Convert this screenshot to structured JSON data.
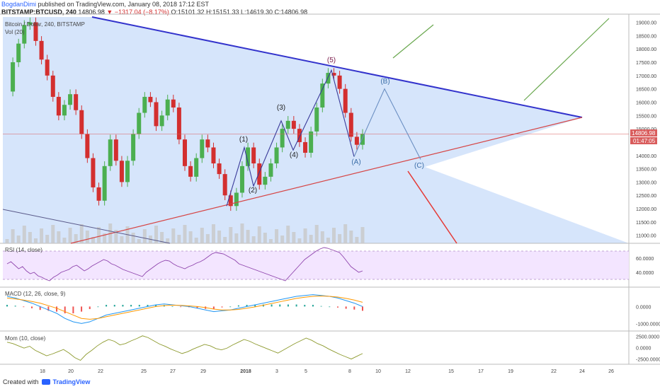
{
  "header": {
    "author": "BogdanDimi",
    "published_text": " published on TradingView.com, January 08, 2018 17:12 EST",
    "symbol": "BITSTAMP:BTCUSD, 240",
    "price": "14806.98",
    "change": "−1317.04 (−8.17%)",
    "ohlc": "O:15101.32 H:15151.33 L:14619.30 C:14806.98"
  },
  "legend": {
    "main": "Bitcoin / Dollar, 240, BITSTAMP",
    "volume": "Vol (20)"
  },
  "price_tags": {
    "price": "14806.98",
    "countdown": "01:47:05"
  },
  "footer": {
    "created_with": "Created with",
    "brand": "TradingView"
  },
  "colors": {
    "background": "#ffffff",
    "triangle_fill": "#cfe0fa",
    "upper_trendline": "#3333cc",
    "lower_trendline": "#d64545",
    "candle_up": "#4caf50",
    "candle_down": "#d32f2f",
    "rsi_line": "#8e44ad",
    "rsi_band": "#f3e5ff",
    "macd_line": "#2196f3",
    "signal_line": "#ff9800",
    "mom_line": "#8d9a2e",
    "current_price_line": "#d95c5c"
  },
  "chart_data": [
    {
      "type": "candlestick",
      "title": "Bitcoin / Dollar, 240, BITSTAMP",
      "ylim": [
        10700,
        19200
      ],
      "y_ticks": [
        "19000.00",
        "18500.00",
        "18000.00",
        "17500.00",
        "17000.00",
        "16500.00",
        "16000.00",
        "15500.00",
        "15000.00",
        "14500.00",
        "14000.00",
        "13500.00",
        "13000.00",
        "12500.00",
        "12000.00",
        "11500.00",
        "11000.00"
      ],
      "x_ticks": [
        "18",
        "20",
        "22",
        "25",
        "27",
        "29",
        "2018",
        "3",
        "5",
        "8",
        "10",
        "12",
        "15",
        "17",
        "19",
        "22",
        "24",
        "26"
      ],
      "close_path": [
        16400,
        17500,
        18200,
        18900,
        19000,
        18300,
        17600,
        17000,
        16200,
        15500,
        15900,
        16300,
        15700,
        14800,
        13900,
        12800,
        12300,
        13600,
        14600,
        13800,
        13000,
        13800,
        14800,
        15600,
        16200,
        16000,
        15100,
        15500,
        16100,
        15800,
        14600,
        13600,
        13200,
        13900,
        14600,
        14300,
        13700,
        13300,
        12500,
        12100,
        12600,
        13600,
        14300,
        13700,
        12900,
        13200,
        13700,
        14300,
        15000,
        15300,
        15000,
        14500,
        14100,
        14900,
        15800,
        16700,
        17100,
        17000,
        16500,
        15600,
        14700,
        14400,
        14806.98
      ],
      "wave_labels": [
        {
          "label": "(1)",
          "price": 14300
        },
        {
          "label": "(2)",
          "price": 12850
        },
        {
          "label": "(3)",
          "price": 15300
        },
        {
          "label": "(4)",
          "price": 14200
        },
        {
          "label": "(5)",
          "price": 17200
        },
        {
          "label": "(A)",
          "price": 13950
        },
        {
          "label": "(B)",
          "price": 16500
        },
        {
          "label": "(C)",
          "price": 13850
        }
      ],
      "current_price": 14806.98
    },
    {
      "type": "line",
      "title": "RSI (14, close)",
      "y_ticks": [
        "60.0000",
        "40.0000"
      ],
      "ylim": [
        20,
        80
      ],
      "band": [
        30,
        70
      ],
      "values": [
        52,
        55,
        50,
        45,
        48,
        42,
        38,
        40,
        35,
        33,
        30,
        28,
        33,
        36,
        40,
        42,
        44,
        48,
        50,
        46,
        42,
        45,
        49,
        52,
        55,
        58,
        56,
        52,
        50,
        47,
        44,
        42,
        40,
        38,
        36,
        34,
        40,
        44,
        48,
        52,
        55,
        57,
        56,
        52,
        49,
        47,
        45,
        48,
        50,
        53,
        55,
        58,
        62,
        66,
        68,
        67,
        66,
        63,
        60,
        57,
        52,
        50,
        48,
        46,
        44,
        42,
        40,
        38,
        36,
        34,
        32,
        30,
        28,
        34,
        40,
        46,
        52,
        58,
        62,
        66,
        70,
        73,
        75,
        74,
        72,
        70,
        68,
        62,
        55,
        48,
        44,
        40,
        42
      ]
    },
    {
      "type": "line",
      "title": "MACD (12, 26, close, 9)",
      "y_ticks": [
        "0.0000",
        "-1000.0000"
      ],
      "ylim": [
        -1400,
        1100
      ],
      "series": [
        {
          "name": "MACD",
          "values": [
            600,
            500,
            350,
            200,
            0,
            -200,
            -400,
            -700,
            -900,
            -1000,
            -900,
            -700,
            -500,
            -400,
            -300,
            -200,
            -100,
            0,
            100,
            150,
            100,
            50,
            0,
            -100,
            -200,
            -300,
            -250,
            -200,
            -100,
            0,
            100,
            200,
            300,
            400,
            500,
            600,
            650,
            700,
            650,
            600,
            500,
            350,
            200,
            0
          ]
        },
        {
          "name": "Signal",
          "values": [
            500,
            450,
            380,
            300,
            200,
            50,
            -100,
            -300,
            -500,
            -700,
            -750,
            -700,
            -600,
            -500,
            -400,
            -300,
            -200,
            -100,
            0,
            60,
            80,
            70,
            40,
            0,
            -60,
            -150,
            -200,
            -200,
            -170,
            -100,
            -20,
            80,
            180,
            280,
            380,
            480,
            550,
            600,
            620,
            600,
            560,
            480,
            380,
            250
          ]
        }
      ]
    },
    {
      "type": "line",
      "title": "Mom (10, close)",
      "y_ticks": [
        "2500.0000",
        "0.0000",
        "-2500.0000"
      ],
      "ylim": [
        -3500,
        3500
      ],
      "values": [
        1200,
        900,
        400,
        -100,
        300,
        -600,
        -1200,
        -1800,
        -1400,
        -900,
        -400,
        -1200,
        -2200,
        -2800,
        -1500,
        -600,
        400,
        1200,
        1800,
        1400,
        600,
        900,
        1500,
        2000,
        2600,
        2200,
        1500,
        800,
        300,
        -300,
        -800,
        -1300,
        -900,
        -300,
        200,
        700,
        400,
        -200,
        -500,
        -100,
        600,
        1200,
        1800,
        1400,
        800,
        300,
        -200,
        -700,
        -1200,
        -500,
        200,
        900,
        1500,
        2100,
        1600,
        900,
        400,
        -300,
        -900,
        -1500,
        -2000,
        -2500,
        -1900,
        -1300
      ]
    }
  ]
}
